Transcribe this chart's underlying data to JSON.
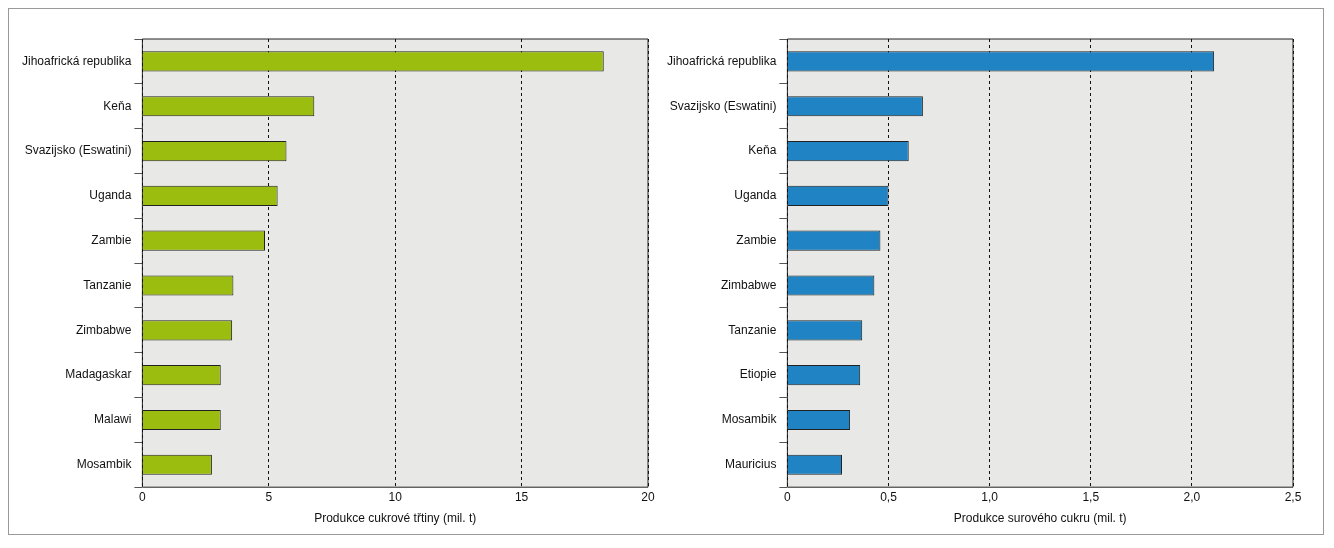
{
  "chart_data": [
    {
      "type": "bar",
      "orientation": "horizontal",
      "xlabel": "Produkce cukrové třtiny (mil. t)",
      "categories": [
        "Jihoafrická republika",
        "Keňa",
        "Svazijsko (Eswatini)",
        "Uganda",
        "Zambie",
        "Tanzanie",
        "Zimbabwe",
        "Madagaskar",
        "Malawi",
        "Mosambik"
      ],
      "values": [
        18.25,
        6.8,
        5.7,
        5.35,
        4.85,
        3.6,
        3.55,
        3.1,
        3.1,
        2.75
      ],
      "color": "#9bbd10",
      "xlim": [
        0,
        20
      ],
      "xticks": [
        0,
        5,
        10,
        15,
        20
      ],
      "grid": "x"
    },
    {
      "type": "bar",
      "orientation": "horizontal",
      "xlabel": "Produkce surového cukru (mil. t)",
      "categories": [
        "Jihoafrická republika",
        "Svazijsko (Eswatini)",
        "Keňa",
        "Uganda",
        "Zambie",
        "Zimbabwe",
        "Tanzanie",
        "Etiopie",
        "Mosambik",
        "Mauricius"
      ],
      "values": [
        2.11,
        0.67,
        0.6,
        0.5,
        0.46,
        0.43,
        0.37,
        0.36,
        0.31,
        0.27
      ],
      "color": "#2083c4",
      "xlim": [
        0,
        2.5
      ],
      "xticks": [
        0,
        {
          "value": 0.5,
          "label": "0,5"
        },
        {
          "value": 1,
          "label": "1,0"
        },
        {
          "value": 1.5,
          "label": "1,5"
        },
        {
          "value": 2,
          "label": "2,0"
        },
        {
          "value": 2.5,
          "label": "2,5"
        }
      ],
      "grid": "x"
    }
  ]
}
